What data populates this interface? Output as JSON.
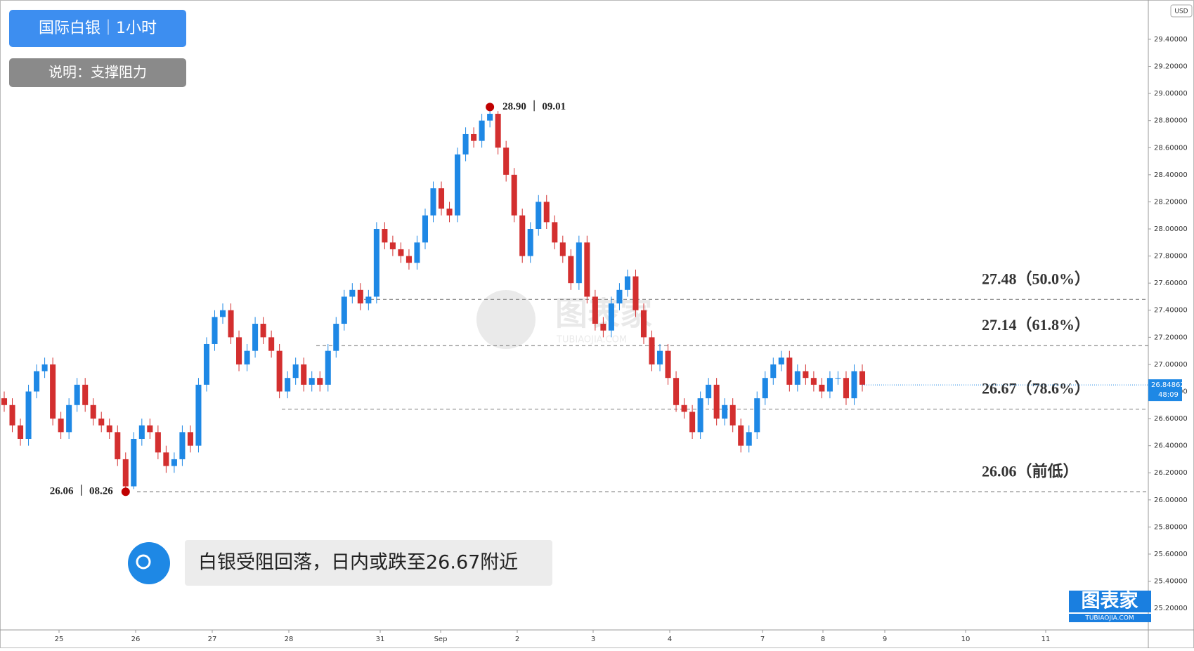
{
  "header": {
    "title": "国际白银｜1小时",
    "note": "说明：支撑阻力"
  },
  "chart_data": {
    "type": "candlestick",
    "currency": "USD",
    "up_color": "#1e88e5",
    "down_color": "#d32f2f",
    "open": [
      26.75,
      26.7,
      26.55,
      26.45,
      26.8,
      26.95,
      27.0,
      26.6,
      26.5,
      26.7,
      26.85,
      26.7,
      26.6,
      26.55,
      26.5,
      26.3,
      26.1,
      26.45,
      26.55,
      26.5,
      26.35,
      26.25,
      26.3,
      26.5,
      26.4,
      26.85,
      27.15,
      27.35,
      27.4,
      27.2,
      27.0,
      27.1,
      27.3,
      27.2,
      27.1,
      26.8,
      26.9,
      27.0,
      26.85,
      26.9,
      26.85,
      27.1,
      27.3,
      27.5,
      27.55,
      27.45,
      27.5,
      28.0,
      27.9,
      27.85,
      27.8,
      27.75,
      27.9,
      28.1,
      28.3,
      28.15,
      28.1,
      28.55,
      28.7,
      28.65,
      28.8,
      28.85,
      28.6,
      28.4,
      28.1,
      27.8,
      28.0,
      28.2,
      28.05,
      27.9,
      27.8,
      27.6,
      27.9,
      27.5,
      27.3,
      27.25,
      27.45,
      27.55,
      27.65,
      27.4,
      27.2,
      27.0,
      27.1,
      26.9,
      26.7,
      26.65,
      26.5,
      26.75,
      26.85,
      26.6,
      26.7,
      26.55,
      26.4,
      26.5,
      26.75,
      26.9,
      27.0,
      27.05,
      26.85,
      26.95,
      26.9,
      26.85,
      26.8,
      26.9,
      26.9,
      26.75,
      26.95
    ],
    "high": [
      26.8,
      26.75,
      26.6,
      26.85,
      27.0,
      27.05,
      27.05,
      26.65,
      26.75,
      26.9,
      26.9,
      26.75,
      26.65,
      26.6,
      26.55,
      26.35,
      26.5,
      26.6,
      26.6,
      26.55,
      26.4,
      26.35,
      26.55,
      26.55,
      26.9,
      27.2,
      27.4,
      27.45,
      27.45,
      27.25,
      27.15,
      27.35,
      27.35,
      27.25,
      27.15,
      26.95,
      27.05,
      27.05,
      26.95,
      26.95,
      27.15,
      27.35,
      27.55,
      27.6,
      27.6,
      27.55,
      28.05,
      28.05,
      27.95,
      27.9,
      27.85,
      27.95,
      28.15,
      28.35,
      28.35,
      28.2,
      28.6,
      28.75,
      28.75,
      28.85,
      28.9,
      28.87,
      28.65,
      28.45,
      28.15,
      28.05,
      28.25,
      28.25,
      28.1,
      27.95,
      27.85,
      27.95,
      27.95,
      27.55,
      27.35,
      27.5,
      27.6,
      27.7,
      27.7,
      27.45,
      27.25,
      27.15,
      27.15,
      26.95,
      26.75,
      26.7,
      26.8,
      26.9,
      26.9,
      26.75,
      26.75,
      26.6,
      26.55,
      26.8,
      26.95,
      27.05,
      27.1,
      27.1,
      27.0,
      27.0,
      26.95,
      26.9,
      26.95,
      26.95,
      26.95,
      27.0,
      27.0
    ],
    "low": [
      26.65,
      26.5,
      26.4,
      26.4,
      26.75,
      26.9,
      26.55,
      26.45,
      26.45,
      26.65,
      26.65,
      26.55,
      26.5,
      26.45,
      26.25,
      26.06,
      26.08,
      26.4,
      26.45,
      26.3,
      26.2,
      26.2,
      26.25,
      26.35,
      26.35,
      26.8,
      27.1,
      27.3,
      27.15,
      26.95,
      26.95,
      27.05,
      27.15,
      27.05,
      26.75,
      26.75,
      26.85,
      26.8,
      26.8,
      26.8,
      26.8,
      27.05,
      27.25,
      27.45,
      27.4,
      27.4,
      27.45,
      27.85,
      27.8,
      27.75,
      27.7,
      27.7,
      27.85,
      28.05,
      28.1,
      28.05,
      28.05,
      28.5,
      28.6,
      28.6,
      28.75,
      28.55,
      28.35,
      28.05,
      27.75,
      27.75,
      27.95,
      28.0,
      27.85,
      27.75,
      27.55,
      27.55,
      27.45,
      27.25,
      27.2,
      27.2,
      27.4,
      27.5,
      27.35,
      27.15,
      26.95,
      26.95,
      26.85,
      26.65,
      26.6,
      26.45,
      26.45,
      26.7,
      26.55,
      26.55,
      26.5,
      26.35,
      26.35,
      26.45,
      26.7,
      26.85,
      26.95,
      26.8,
      26.8,
      26.85,
      26.8,
      26.75,
      26.75,
      26.85,
      26.7,
      26.7,
      26.8
    ],
    "close": [
      26.7,
      26.55,
      26.45,
      26.8,
      26.95,
      27.0,
      26.6,
      26.5,
      26.7,
      26.85,
      26.7,
      26.6,
      26.55,
      26.5,
      26.3,
      26.1,
      26.45,
      26.55,
      26.5,
      26.35,
      26.25,
      26.3,
      26.5,
      26.4,
      26.85,
      27.15,
      27.35,
      27.4,
      27.2,
      27.0,
      27.1,
      27.3,
      27.2,
      27.1,
      26.8,
      26.9,
      27.0,
      26.85,
      26.9,
      26.85,
      27.1,
      27.3,
      27.5,
      27.55,
      27.45,
      27.5,
      28.0,
      27.9,
      27.85,
      27.8,
      27.75,
      27.9,
      28.1,
      28.3,
      28.15,
      28.1,
      28.55,
      28.7,
      28.65,
      28.8,
      28.85,
      28.6,
      28.4,
      28.1,
      27.8,
      28.0,
      28.2,
      28.05,
      27.9,
      27.8,
      27.6,
      27.9,
      27.5,
      27.3,
      27.25,
      27.45,
      27.55,
      27.65,
      27.4,
      27.2,
      27.0,
      27.1,
      26.9,
      26.7,
      26.65,
      26.5,
      26.75,
      26.85,
      26.6,
      26.7,
      26.55,
      26.4,
      26.5,
      26.75,
      26.9,
      27.0,
      27.05,
      26.85,
      26.95,
      26.9,
      26.85,
      26.8,
      26.9,
      26.9,
      26.75,
      26.95,
      26.85
    ],
    "x_labels": [
      "25",
      "26",
      "27",
      "28",
      "31",
      "Sep",
      "2",
      "3",
      "4",
      "7",
      "8",
      "9",
      "10",
      "11"
    ],
    "ylim": [
      25.04,
      29.69
    ],
    "yticks": [
      {
        "value": 25.2,
        "label": "25.20000"
      },
      {
        "value": 25.4,
        "label": "25.40000"
      },
      {
        "value": 25.6,
        "label": "25.60000"
      },
      {
        "value": 25.8,
        "label": "25.80000"
      },
      {
        "value": 26.0,
        "label": "26.00000"
      },
      {
        "value": 26.2,
        "label": "26.20000"
      },
      {
        "value": 26.4,
        "label": "26.40000"
      },
      {
        "value": 26.6,
        "label": "26.60000"
      },
      {
        "value": 26.8,
        "label": "26.80000"
      },
      {
        "value": 27.0,
        "label": "27.00000"
      },
      {
        "value": 27.2,
        "label": "27.20000"
      },
      {
        "value": 27.4,
        "label": "27.40000"
      },
      {
        "value": 27.6,
        "label": "27.60000"
      },
      {
        "value": 27.8,
        "label": "27.80000"
      },
      {
        "value": 28.0,
        "label": "28.00000"
      },
      {
        "value": 28.2,
        "label": "28.20000"
      },
      {
        "value": 28.4,
        "label": "28.40000"
      },
      {
        "value": 28.6,
        "label": "28.60000"
      },
      {
        "value": 28.8,
        "label": "28.80000"
      },
      {
        "value": 29.0,
        "label": "29.00000"
      },
      {
        "value": 29.2,
        "label": "29.20000"
      },
      {
        "value": 29.4,
        "label": "29.40000"
      }
    ],
    "levels": [
      {
        "value": 27.48,
        "label": "27.48（50.0%）"
      },
      {
        "value": 27.14,
        "label": "27.14（61.8%）"
      },
      {
        "value": 26.67,
        "label": "26.67（78.6%）"
      },
      {
        "value": 26.06,
        "label": "26.06（前低）"
      }
    ],
    "annotations": [
      {
        "value": 28.9,
        "label": "28.90 ｜ 09.01"
      },
      {
        "value": 26.06,
        "label": "26.06 ｜ 08.26"
      }
    ],
    "price_tag": {
      "value": 26.84862,
      "countdown": "48:09"
    }
  },
  "comment": "白银受阻回落，日内或跌至26.67附近",
  "logo": {
    "name": "图表家",
    "url": "TUBIAOJIA.COM"
  }
}
